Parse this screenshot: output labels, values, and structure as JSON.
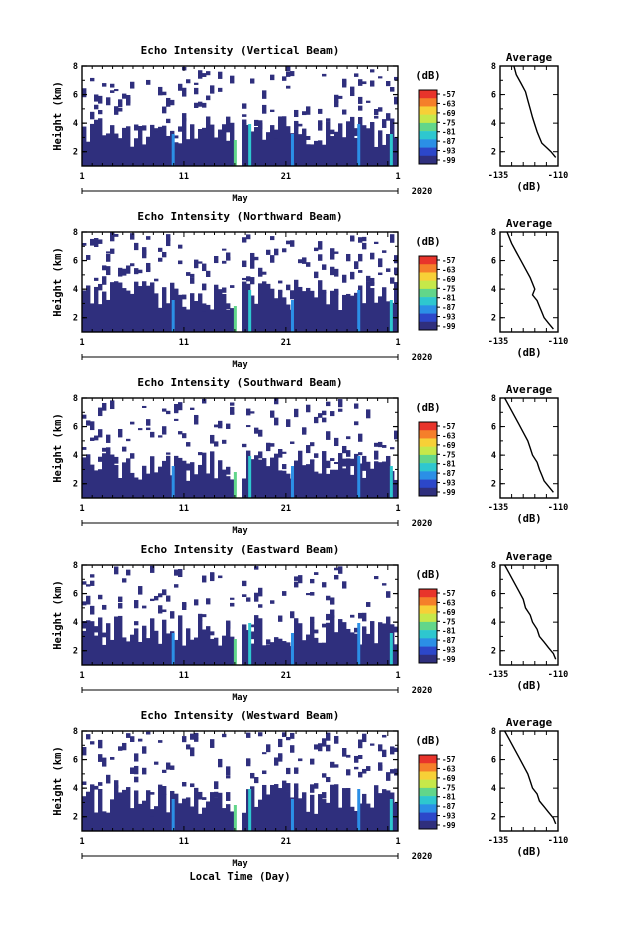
{
  "figure": {
    "x_axis_label": "Local Time (Day)",
    "month_label": "May",
    "year_label": "2020"
  },
  "colorbar": {
    "unit": "(dB)",
    "ticks": [
      "-57",
      "-63",
      "-69",
      "-75",
      "-81",
      "-87",
      "-93",
      "-99"
    ],
    "colors": [
      "#e8342b",
      "#f57f2a",
      "#f7d037",
      "#c6e84a",
      "#62d68a",
      "#2ec7cf",
      "#2b8fe6",
      "#2c47c9",
      "#2f2f7d"
    ]
  },
  "chart_data": [
    {
      "type": "heatmap",
      "title": "Echo Intensity (Vertical Beam)",
      "ylabel": "Height (km)",
      "xlim": [
        1,
        32
      ],
      "ylim": [
        1,
        8
      ],
      "xticks": [
        "1",
        "11",
        "21",
        "1"
      ],
      "yticks": [
        "2",
        "4",
        "6",
        "8"
      ],
      "missing_data_days": [
        [
          15.8,
          16.8
        ]
      ],
      "echo_top_km_approx": 3.2
    },
    {
      "type": "line",
      "title": "Average",
      "xlabel": "(dB)",
      "ylabel": "Height (km)",
      "xlim": [
        -135,
        -110
      ],
      "ylim": [
        1,
        8
      ],
      "xticks": [
        "-135",
        "-110"
      ],
      "yticks": [
        "2",
        "4",
        "6",
        "8"
      ],
      "x": [
        -129,
        -128,
        -126,
        -124,
        -123,
        -122,
        -121,
        -120,
        -119,
        -118,
        -117,
        -115,
        -113,
        -111
      ],
      "y": [
        8.0,
        7.4,
        6.8,
        6.2,
        5.6,
        5.0,
        4.4,
        3.9,
        3.4,
        3.0,
        2.6,
        2.3,
        2.0,
        1.6
      ]
    },
    {
      "type": "heatmap",
      "title": "Echo Intensity (Northward Beam)",
      "ylabel": "Height (km)",
      "xlim": [
        1,
        32
      ],
      "ylim": [
        1,
        8
      ],
      "xticks": [
        "1",
        "11",
        "21",
        "1"
      ],
      "yticks": [
        "2",
        "4",
        "6",
        "8"
      ],
      "missing_data_days": [
        [
          15.8,
          16.8
        ]
      ],
      "echo_top_km_approx": 3.4
    },
    {
      "type": "line",
      "title": "Average",
      "xlabel": "(dB)",
      "ylabel": "Height (km)",
      "xlim": [
        -135,
        -110
      ],
      "ylim": [
        1,
        8
      ],
      "xticks": [
        "-135",
        "-110"
      ],
      "yticks": [
        "2",
        "4",
        "6",
        "8"
      ],
      "x": [
        -132,
        -130,
        -128,
        -126,
        -124,
        -122,
        -121,
        -120,
        -121,
        -119,
        -118,
        -117,
        -116,
        -114,
        -112
      ],
      "y": [
        8.0,
        7.2,
        6.6,
        6.0,
        5.4,
        4.8,
        4.4,
        4.0,
        3.6,
        3.2,
        2.8,
        2.4,
        2.0,
        1.6,
        1.2
      ]
    },
    {
      "type": "heatmap",
      "title": "Echo Intensity (Southward Beam)",
      "ylabel": "Height (km)",
      "xlim": [
        1,
        32
      ],
      "ylim": [
        1,
        8
      ],
      "xticks": [
        "1",
        "11",
        "21",
        "1"
      ],
      "yticks": [
        "2",
        "4",
        "6",
        "8"
      ],
      "missing_data_days": [
        [
          15.8,
          16.8
        ]
      ],
      "echo_top_km_approx": 3.0
    },
    {
      "type": "line",
      "title": "Average",
      "xlabel": "(dB)",
      "ylabel": "Height (km)",
      "xlim": [
        -135,
        -110
      ],
      "ylim": [
        1,
        8
      ],
      "xticks": [
        "-135",
        "-110"
      ],
      "yticks": [
        "2",
        "4",
        "6",
        "8"
      ],
      "x": [
        -133,
        -131,
        -129,
        -127,
        -125,
        -123,
        -122,
        -121,
        -119,
        -118,
        -117,
        -116,
        -114,
        -112
      ],
      "y": [
        8.0,
        7.4,
        6.8,
        6.2,
        5.6,
        5.0,
        4.5,
        4.0,
        3.5,
        3.0,
        2.6,
        2.2,
        1.8,
        1.4
      ]
    },
    {
      "type": "heatmap",
      "title": "Echo Intensity (Eastward Beam)",
      "ylabel": "Height (km)",
      "xlim": [
        1,
        32
      ],
      "ylim": [
        1,
        8
      ],
      "xticks": [
        "1",
        "11",
        "21",
        "1"
      ],
      "yticks": [
        "2",
        "4",
        "6",
        "8"
      ],
      "missing_data_days": [
        [
          15.8,
          16.8
        ]
      ],
      "echo_top_km_approx": 3.2
    },
    {
      "type": "line",
      "title": "Average",
      "xlabel": "(dB)",
      "ylabel": "Height (km)",
      "xlim": [
        -135,
        -110
      ],
      "ylim": [
        1,
        8
      ],
      "xticks": [
        "-135",
        "-110"
      ],
      "yticks": [
        "2",
        "4",
        "6",
        "8"
      ],
      "x": [
        -133,
        -131,
        -129,
        -127,
        -125,
        -124,
        -122,
        -121,
        -119,
        -118,
        -116,
        -114,
        -112,
        -111
      ],
      "y": [
        8.0,
        7.4,
        6.8,
        6.2,
        5.6,
        5.0,
        4.5,
        4.0,
        3.5,
        3.0,
        2.6,
        2.2,
        1.8,
        1.4
      ]
    },
    {
      "type": "heatmap",
      "title": "Echo Intensity (Westward Beam)",
      "ylabel": "Height (km)",
      "xlim": [
        1,
        32
      ],
      "ylim": [
        1,
        8
      ],
      "xticks": [
        "1",
        "11",
        "21",
        "1"
      ],
      "yticks": [
        "2",
        "4",
        "6",
        "8"
      ],
      "missing_data_days": [
        [
          15.8,
          16.8
        ]
      ],
      "echo_top_km_approx": 3.0
    },
    {
      "type": "line",
      "title": "Average",
      "xlabel": "(dB)",
      "ylabel": "Height (km)",
      "xlim": [
        -135,
        -110
      ],
      "ylim": [
        1,
        8
      ],
      "xticks": [
        "-135",
        "-110"
      ],
      "yticks": [
        "2",
        "4",
        "6",
        "8"
      ],
      "x": [
        -133,
        -131,
        -129,
        -127,
        -125,
        -123,
        -122,
        -121,
        -119,
        -118,
        -116,
        -114,
        -112,
        -111
      ],
      "y": [
        8.0,
        7.4,
        6.8,
        6.2,
        5.6,
        5.0,
        4.5,
        4.0,
        3.6,
        3.1,
        2.7,
        2.3,
        1.9,
        1.5
      ]
    }
  ]
}
